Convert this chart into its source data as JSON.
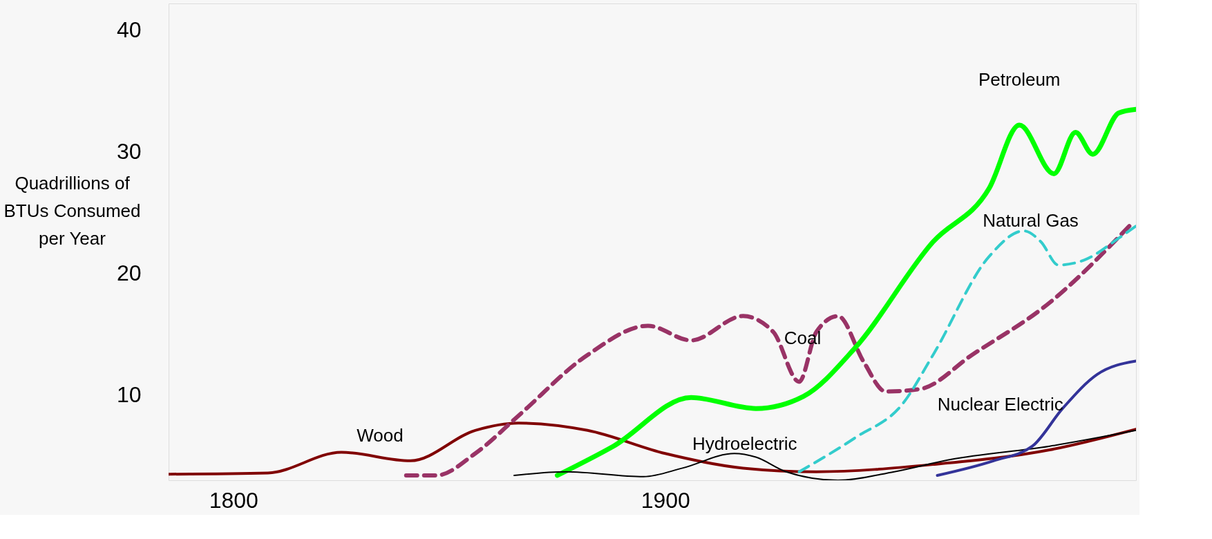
{
  "chart_data": {
    "type": "line",
    "ylabel": "Quadrillions of BTUs Consumed per Year",
    "xlim": [
      1785,
      2009
    ],
    "xticks": [
      1800,
      1900
    ],
    "ylim": [
      3,
      42.2
    ],
    "yticks": [
      10,
      20,
      30,
      40
    ],
    "grid": false,
    "legend": false,
    "marker": "none",
    "series": [
      {
        "name": "Wood",
        "color": "#800000",
        "line_style": "solid",
        "x": [
          1785,
          1808,
          1825,
          1841,
          1856,
          1866,
          1882,
          1900,
          1918,
          1935,
          1962,
          1989,
          2009
        ],
        "values": [
          3.5,
          3.6,
          5.3,
          4.6,
          7.1,
          7.7,
          7.1,
          5.2,
          4.0,
          3.7,
          4.3,
          5.5,
          7.2
        ]
      },
      {
        "name": "Coal",
        "color": "#993366",
        "line_style": "dashed",
        "x": [
          1840,
          1847,
          1856,
          1866,
          1882,
          1896,
          1906,
          1918,
          1925,
          1931,
          1935,
          1940,
          1946,
          1951,
          1959,
          1971,
          1989,
          2008
        ],
        "values": [
          3.4,
          3.4,
          5.2,
          8.3,
          13.3,
          15.7,
          14.5,
          16.5,
          15.2,
          11.1,
          15.2,
          16.5,
          12.7,
          10.3,
          10.5,
          13.3,
          17.6,
          24.1
        ]
      },
      {
        "name": "Petroleum",
        "color": "#00ff00",
        "line_style": "solid",
        "x": [
          1875,
          1888,
          1906,
          1921,
          1932,
          1944,
          1962,
          1975,
          1982,
          1990,
          1995,
          1999,
          2005,
          2009
        ],
        "values": [
          3.4,
          5.8,
          9.8,
          8.9,
          9.9,
          13.9,
          22.6,
          27.0,
          32.2,
          28.2,
          31.6,
          29.8,
          33.2,
          33.5
        ]
      },
      {
        "name": "Natural Gas",
        "color": "#33cccc",
        "line_style": "dashed",
        "x": [
          1931,
          1944,
          1955,
          1962,
          1975,
          1983,
          1987,
          1991,
          1997,
          2005,
          2009
        ],
        "values": [
          3.7,
          6.5,
          9.3,
          13.3,
          21.4,
          23.5,
          22.6,
          20.7,
          21.1,
          22.9,
          23.9
        ]
      },
      {
        "name": "Hydroelectric",
        "color": "#000000",
        "line_style": "solid",
        "x": [
          1865,
          1877,
          1895,
          1904,
          1916,
          1921,
          1928,
          1940,
          1953,
          1966,
          1989,
          2009
        ],
        "values": [
          3.4,
          3.7,
          3.3,
          4.0,
          5.2,
          4.9,
          3.7,
          3.0,
          3.7,
          4.7,
          5.8,
          7.1
        ]
      },
      {
        "name": "Nuclear Electric",
        "color": "#333399",
        "line_style": "solid",
        "x": [
          1963,
          1976,
          1985,
          1992,
          2000,
          2009
        ],
        "values": [
          3.4,
          4.6,
          5.8,
          8.9,
          11.7,
          12.8
        ]
      }
    ]
  }
}
